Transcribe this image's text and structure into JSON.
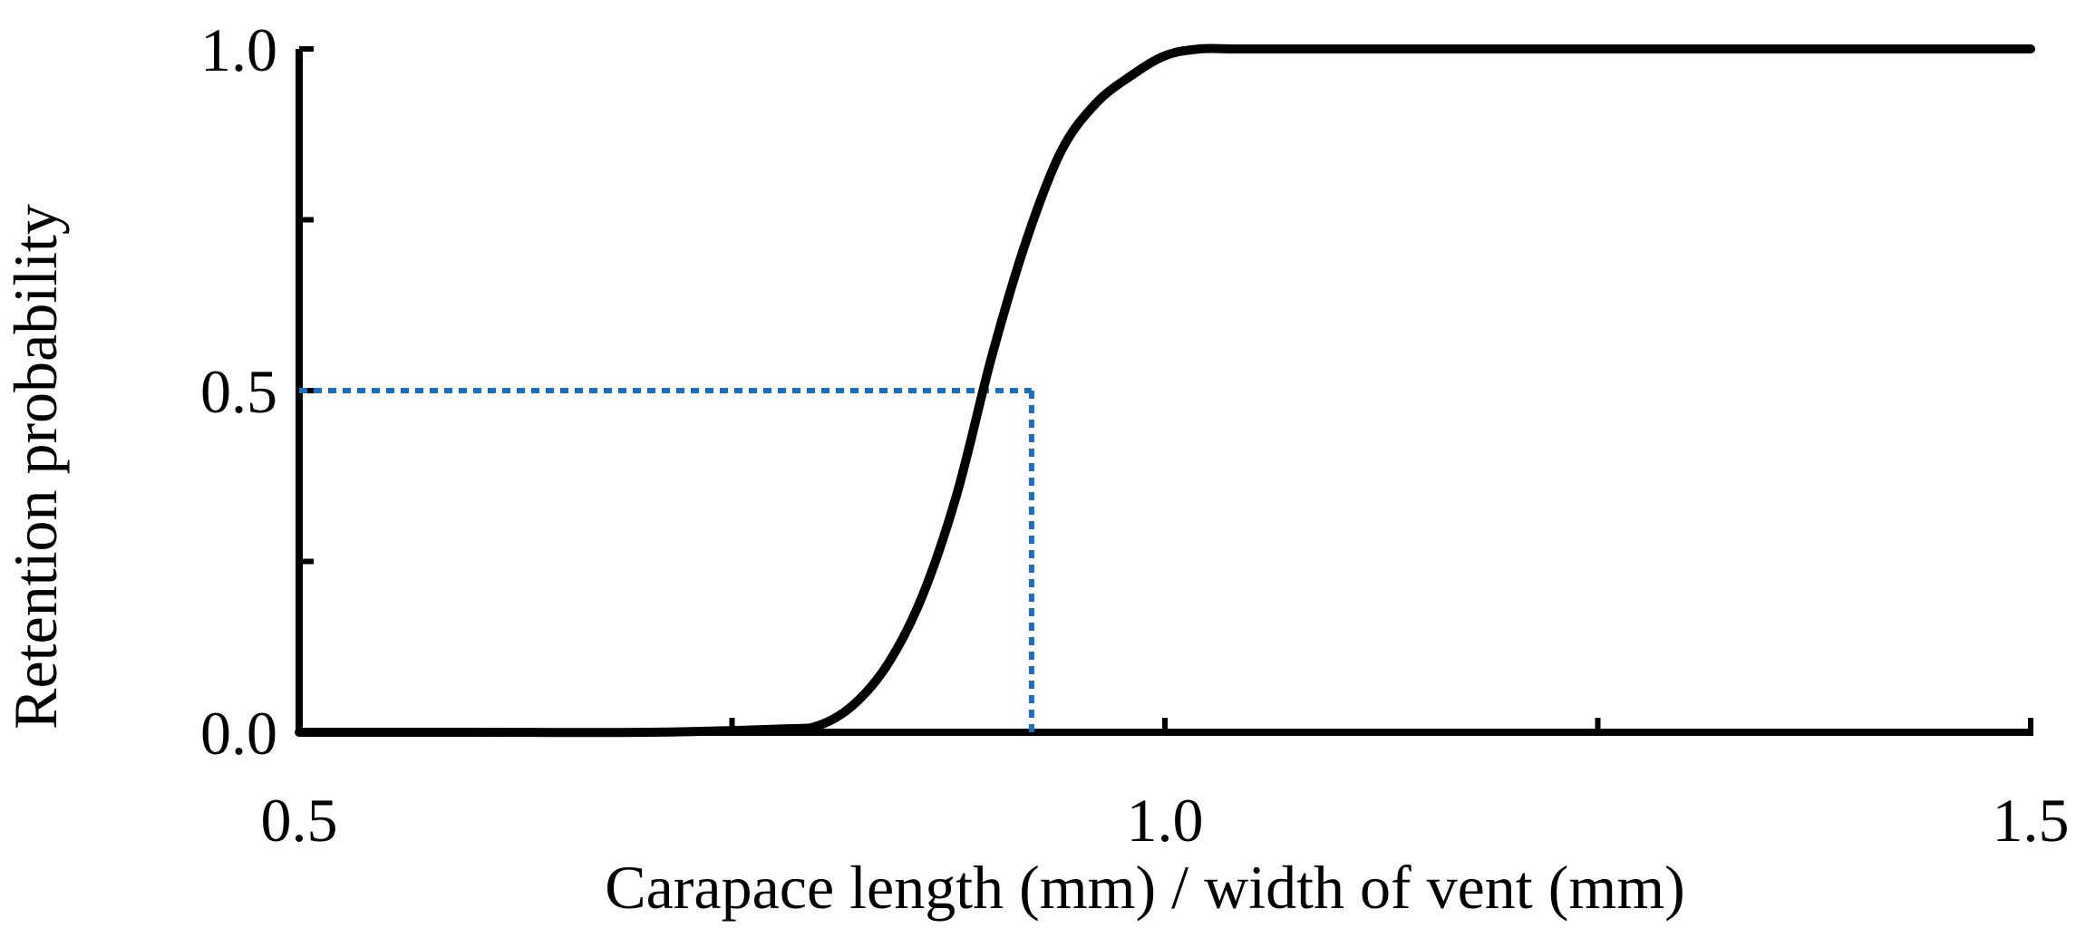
{
  "chart_data": {
    "type": "line",
    "title": "",
    "xlabel": "Carapace length (mm) /  width of vent (mm)",
    "ylabel": "Retention  probability",
    "xlim": [
      0.5,
      1.5
    ],
    "ylim": [
      0.0,
      1.0
    ],
    "x_ticks": [
      0.5,
      0.75,
      1.0,
      1.25,
      1.5
    ],
    "x_tick_labels": [
      "0.5",
      "",
      "1.0",
      "",
      "1.5"
    ],
    "y_ticks": [
      0.0,
      0.25,
      0.5,
      0.75,
      1.0
    ],
    "y_tick_labels": [
      "0.0",
      "",
      "0.5",
      "",
      "1.0"
    ],
    "grid": false,
    "legend": "none",
    "series": [
      {
        "color": "#000000",
        "x": [
          0.5,
          0.6,
          0.7,
          0.78,
          0.8,
          0.82,
          0.84,
          0.86,
          0.88,
          0.9,
          0.92,
          0.94,
          0.96,
          0.98,
          1.0,
          1.02,
          1.04,
          1.06,
          1.1,
          1.2,
          1.3,
          1.4,
          1.5
        ],
        "y": [
          0.0,
          0.0,
          0.0,
          0.005,
          0.01,
          0.04,
          0.1,
          0.2,
          0.35,
          0.55,
          0.72,
          0.85,
          0.92,
          0.96,
          0.99,
          1.0,
          1.0,
          1.0,
          1.0,
          1.0,
          1.0,
          1.0,
          1.0
        ]
      }
    ],
    "reference_lines": {
      "color": "#1a6fc4",
      "x50": 0.923,
      "y50": 0.5
    }
  }
}
